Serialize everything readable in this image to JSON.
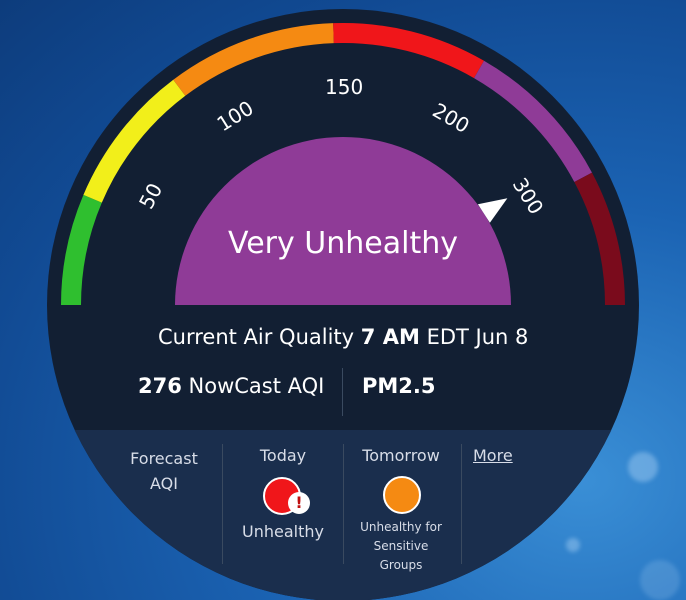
{
  "gauge": {
    "category": "Very Unhealthy",
    "ticks": [
      "50",
      "100",
      "150",
      "200",
      "300"
    ],
    "colors": {
      "good": "#2fbf2f",
      "moderate": "#f2ef1a",
      "usg": "#f58a12",
      "unhealthy": "#f0161a",
      "very_unhealthy": "#8f3b97",
      "hazardous": "#7a0b1c",
      "dial": "#8f3b97",
      "panel": "#121f33"
    },
    "value": 276
  },
  "current": {
    "label": "Current Air Quality",
    "time": "7 AM",
    "timezone_date": "EDT Jun 8",
    "aqi_value": "276",
    "aqi_label": "NowCast AQI",
    "pollutant": "PM2.5"
  },
  "forecast": {
    "title_line1": "Forecast",
    "title_line2": "AQI",
    "today": {
      "label": "Today",
      "status": "Unhealthy",
      "color": "#f0161a"
    },
    "tomorrow": {
      "label": "Tomorrow",
      "status_line1": "Unhealthy for",
      "status_line2": "Sensitive",
      "status_line3": "Groups",
      "color": "#f58a12"
    },
    "more": "More"
  }
}
